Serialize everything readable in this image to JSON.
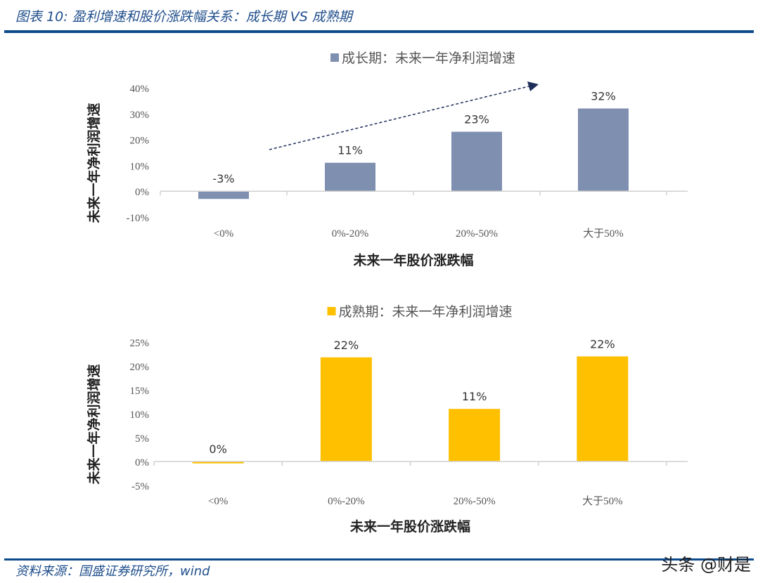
{
  "title": "图表 10: 盈利增速和股价涨跌幅关系：成长期 VS 成熟期",
  "source": "资料来源：国盛证券研究所，wind",
  "watermark": "头条 @财是",
  "chart_data": [
    {
      "type": "bar",
      "legend": "成长期：未来一年净利润增速",
      "legend_placement": "top",
      "color": "#7f8fb0",
      "categories": [
        "<0%",
        "0%-20%",
        "20%-50%",
        "大于50%"
      ],
      "values": [
        -3,
        11,
        23,
        32
      ],
      "data_labels": [
        "-3%",
        "11%",
        "23%",
        "32%"
      ],
      "xlabel": "未来一年股价涨跌幅",
      "ylabel": "未来一年净利润增速",
      "ylim": [
        -10,
        40
      ],
      "yticks": [
        -10,
        0,
        10,
        20,
        30,
        40
      ],
      "ytick_labels": [
        "-10%",
        "0%",
        "10%",
        "20%",
        "30%",
        "40%"
      ],
      "grid": false,
      "annotation": "dashed upward trend arrow"
    },
    {
      "type": "bar",
      "legend": "成熟期：未来一年净利润增速",
      "legend_placement": "top",
      "color": "#ffc000",
      "categories": [
        "<0%",
        "0%-20%",
        "20%-50%",
        "大于50%"
      ],
      "values": [
        -0.4,
        21.8,
        11,
        22
      ],
      "data_labels": [
        "0%",
        "22%",
        "11%",
        "22%"
      ],
      "xlabel": "未来一年股价涨跌幅",
      "ylabel": "未来一年净利润增速",
      "ylim": [
        -5,
        25
      ],
      "yticks": [
        -5,
        0,
        5,
        10,
        15,
        20,
        25
      ],
      "ytick_labels": [
        "-5%",
        "0%",
        "5%",
        "10%",
        "15%",
        "20%",
        "25%"
      ],
      "grid": false
    }
  ]
}
